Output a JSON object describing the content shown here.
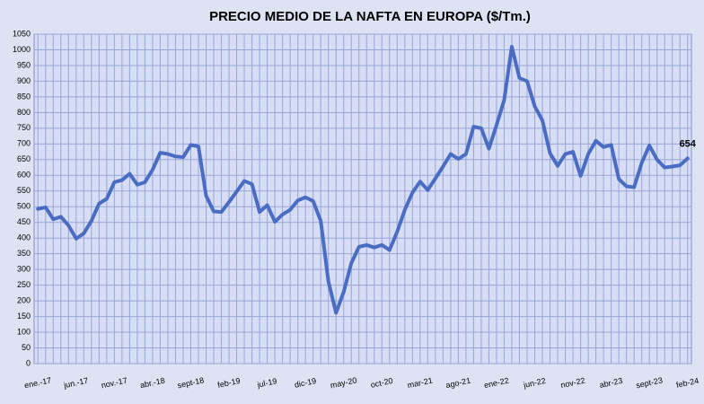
{
  "chart_data": {
    "type": "line",
    "title": "PRECIO  MEDIO DE  LA NAFTA EN  EUROPA ($/Tm.)",
    "categories": [
      "ene.-17",
      null,
      null,
      null,
      null,
      "jun.-17",
      null,
      null,
      null,
      null,
      "nov.-17",
      null,
      null,
      null,
      null,
      "abr.-18",
      null,
      null,
      null,
      null,
      "sept-18",
      null,
      null,
      null,
      null,
      "feb-19",
      null,
      null,
      null,
      null,
      "jul-19",
      null,
      null,
      null,
      null,
      "dic-19",
      null,
      null,
      null,
      null,
      "may-20",
      null,
      null,
      null,
      null,
      "oct-20",
      null,
      null,
      null,
      null,
      "mar-21",
      null,
      null,
      null,
      null,
      "ago-21",
      null,
      null,
      null,
      null,
      "ene-22",
      null,
      null,
      null,
      null,
      "jun-22",
      null,
      null,
      null,
      null,
      "nov-22",
      null,
      null,
      null,
      null,
      "abr-23",
      null,
      null,
      null,
      null,
      "sept-23",
      null,
      null,
      null,
      null,
      "feb-24"
    ],
    "values": [
      493,
      498,
      460,
      468,
      440,
      398,
      415,
      455,
      510,
      525,
      578,
      585,
      605,
      570,
      578,
      618,
      672,
      668,
      660,
      658,
      697,
      692,
      535,
      485,
      483,
      515,
      548,
      582,
      572,
      483,
      505,
      452,
      475,
      490,
      520,
      530,
      518,
      455,
      262,
      162,
      228,
      320,
      372,
      378,
      370,
      378,
      362,
      420,
      490,
      545,
      580,
      553,
      590,
      628,
      668,
      652,
      668,
      755,
      750,
      685,
      760,
      840,
      1010,
      910,
      900,
      820,
      775,
      670,
      630,
      668,
      675,
      598,
      668,
      710,
      690,
      697,
      588,
      565,
      562,
      640,
      695,
      650,
      625,
      628,
      632,
      654
    ],
    "color": "#4a6cc3",
    "ylim": [
      0,
      1050
    ],
    "yticks": [
      0,
      50,
      100,
      150,
      200,
      250,
      300,
      350,
      400,
      450,
      500,
      550,
      600,
      650,
      700,
      750,
      800,
      850,
      900,
      950,
      1000,
      1050
    ],
    "grid": true
  }
}
